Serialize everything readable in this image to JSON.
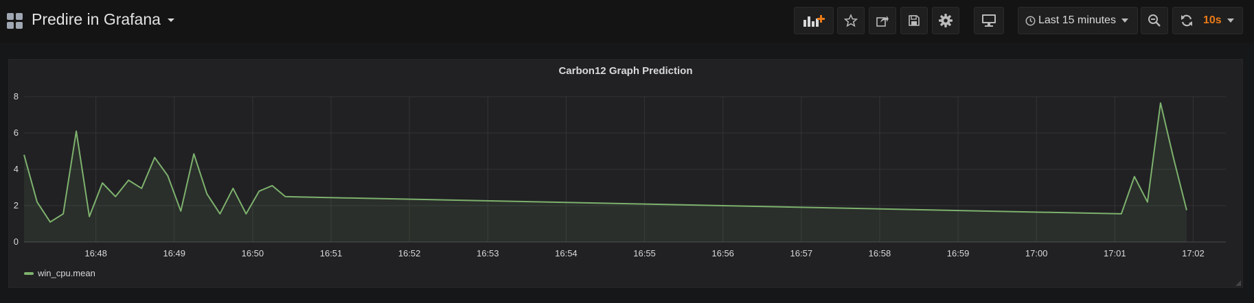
{
  "navbar": {
    "dashboard_title": "Predire in Grafana",
    "time_picker_label": "Last 15 minutes",
    "refresh_interval": "10s"
  },
  "panel": {
    "title": "Carbon12 Graph Prediction"
  },
  "colors": {
    "series": "#7eb26d",
    "refresh_accent": "#eb7b18",
    "add_panel_accent": "#eb7b18"
  },
  "chart_data": {
    "type": "area",
    "title": "Carbon12 Graph Prediction",
    "xlabel": "",
    "ylabel": "",
    "ylim": [
      0,
      8
    ],
    "yticks": [
      0,
      2,
      4,
      6,
      8
    ],
    "xlim": [
      "16:47:05",
      "17:02:25"
    ],
    "xticks": [
      "16:48",
      "16:49",
      "16:50",
      "16:51",
      "16:52",
      "16:53",
      "16:54",
      "16:55",
      "16:56",
      "16:57",
      "16:58",
      "16:59",
      "17:00",
      "17:01",
      "17:02"
    ],
    "grid": true,
    "legend": "bottom-left",
    "series": [
      {
        "name": "win_cpu.mean",
        "x": [
          "16:47:05",
          "16:47:15",
          "16:47:25",
          "16:47:35",
          "16:47:45",
          "16:47:55",
          "16:48:05",
          "16:48:15",
          "16:48:25",
          "16:48:35",
          "16:48:45",
          "16:48:55",
          "16:49:05",
          "16:49:15",
          "16:49:25",
          "16:49:35",
          "16:49:45",
          "16:49:55",
          "16:50:05",
          "16:50:15",
          "16:50:25",
          "16:50:35",
          "17:01:05",
          "17:01:15",
          "17:01:25",
          "17:01:35",
          "17:01:45",
          "17:01:55"
        ],
        "y": [
          4.8,
          2.2,
          1.1,
          1.55,
          6.1,
          1.4,
          3.25,
          2.5,
          3.4,
          2.95,
          4.65,
          3.65,
          1.7,
          4.85,
          2.65,
          1.55,
          2.95,
          1.55,
          2.8,
          3.1,
          2.5,
          2.48,
          1.55,
          3.6,
          2.2,
          7.65,
          4.6,
          1.75
        ]
      }
    ]
  }
}
